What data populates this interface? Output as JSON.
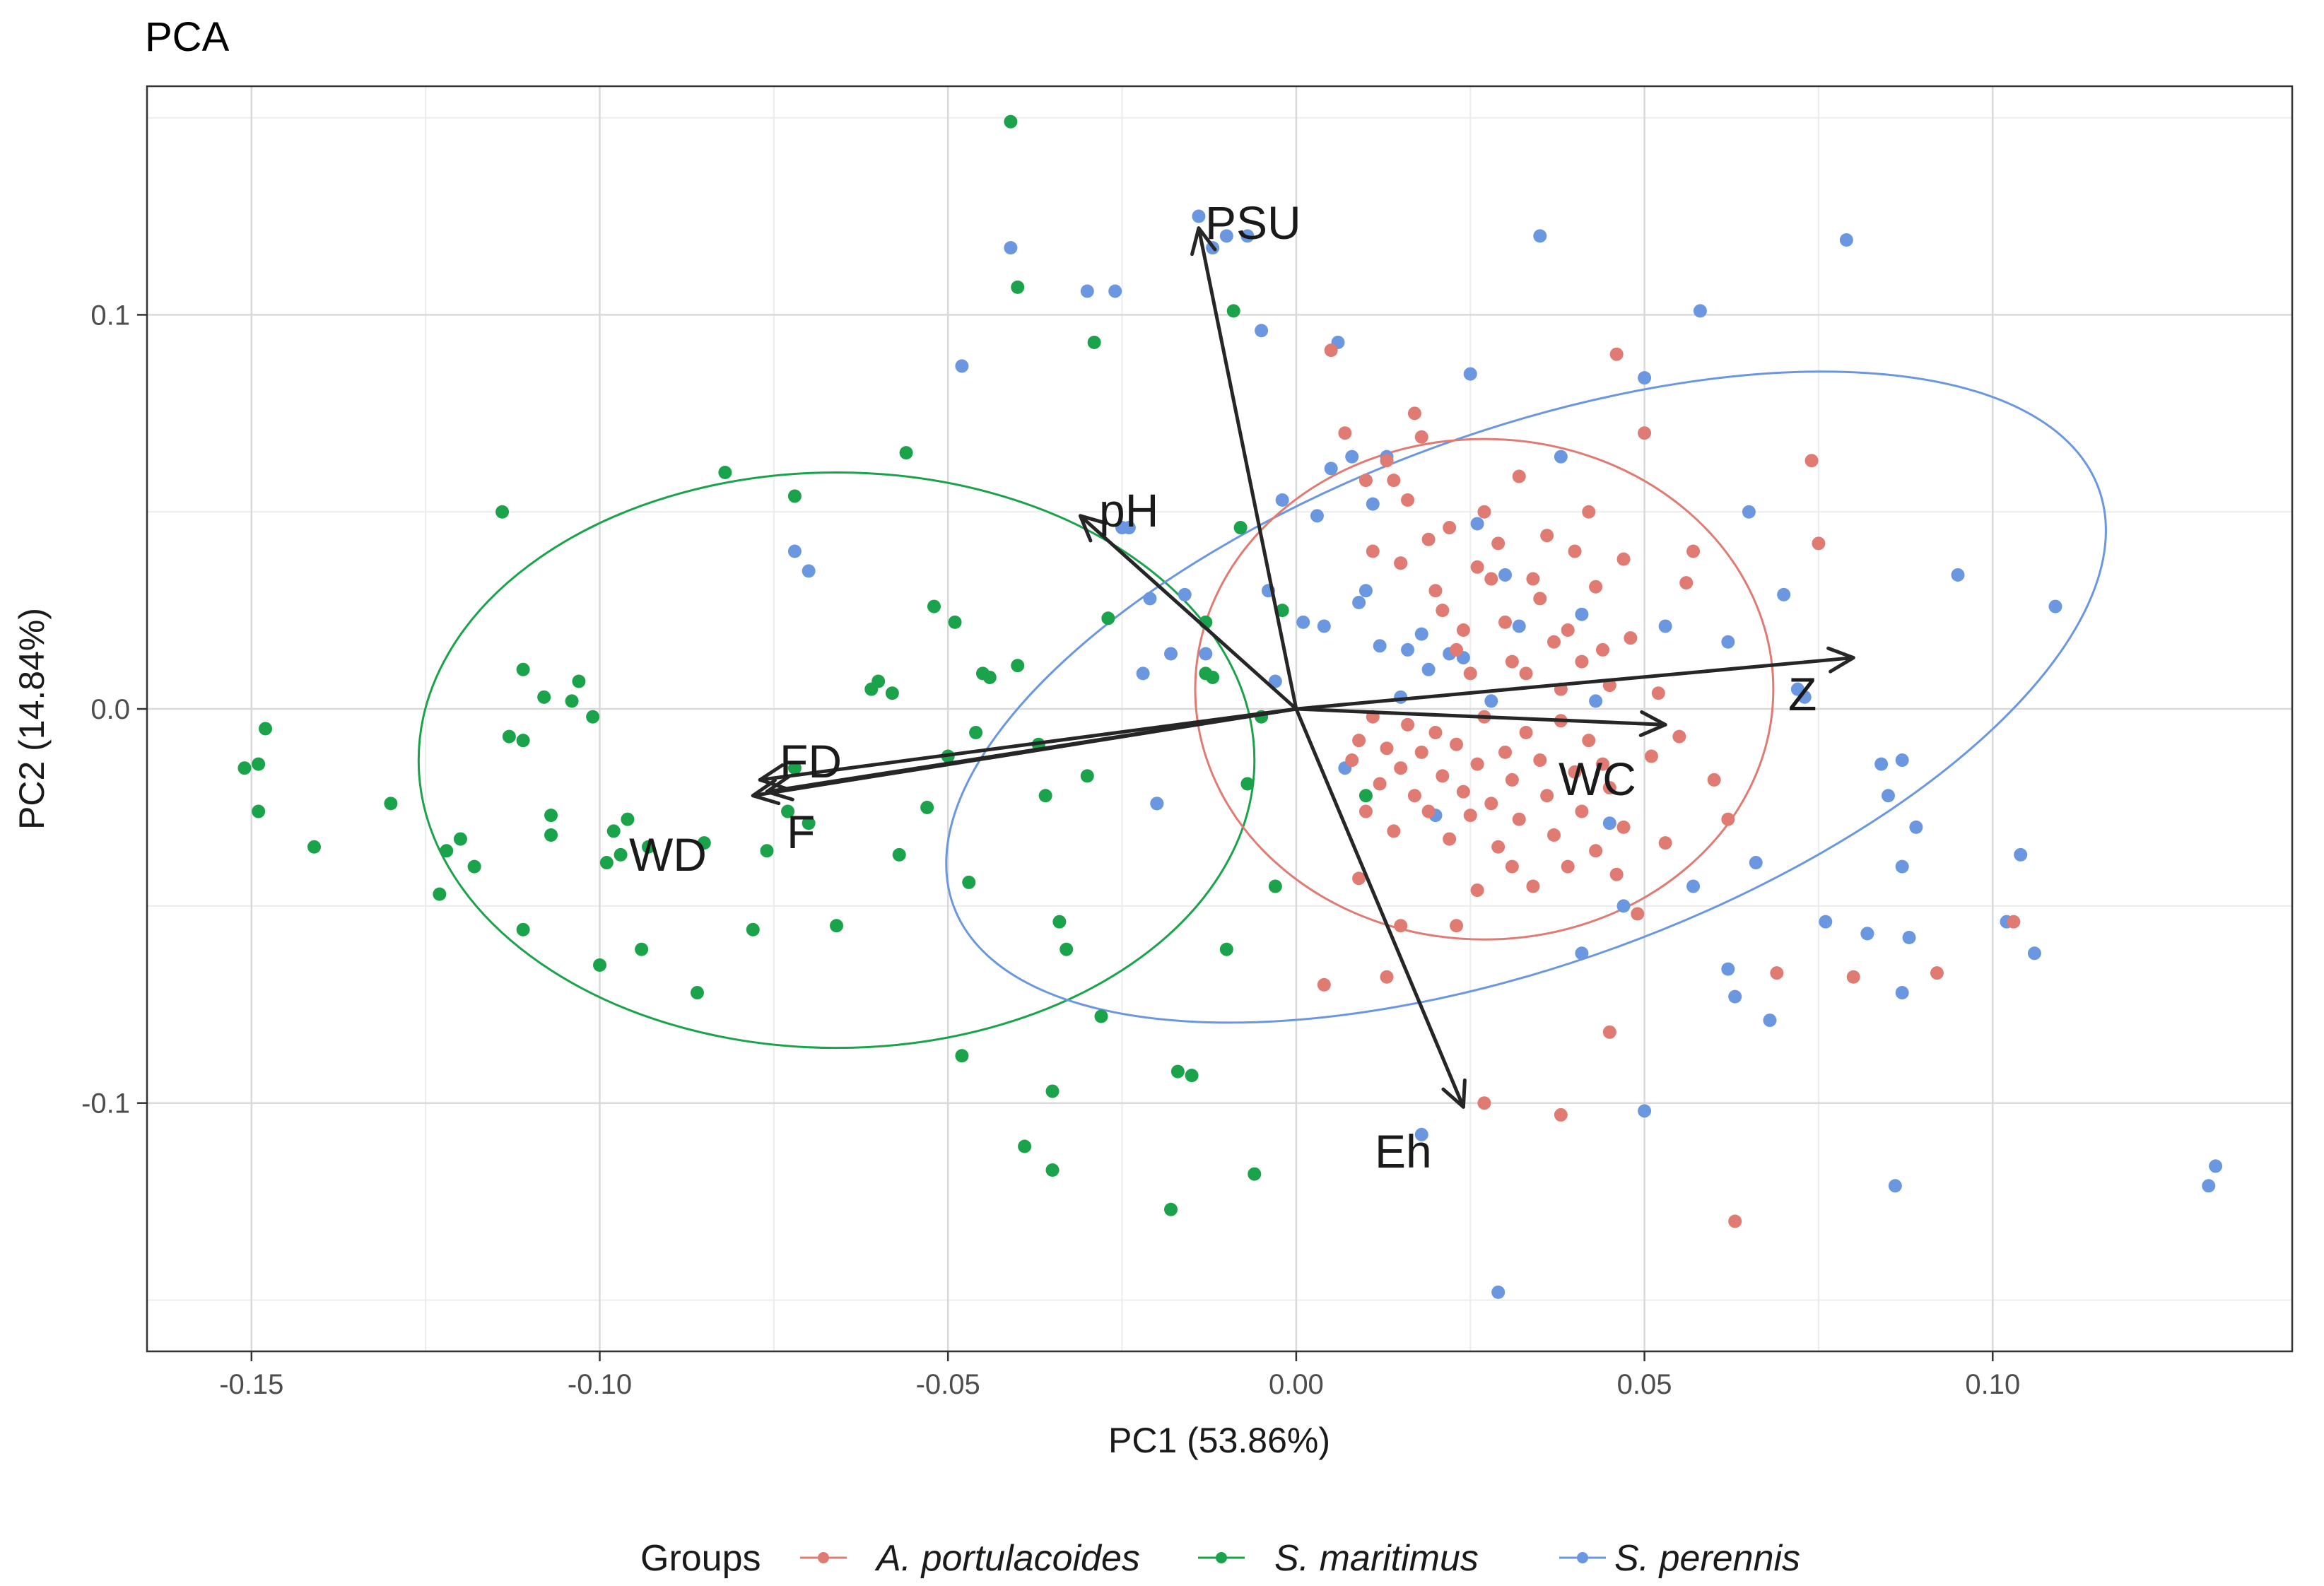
{
  "chart_data": {
    "type": "scatter",
    "title": "PCA",
    "xlabel": "PC1 (53.86%)",
    "ylabel": "PC2 (14.84%)",
    "xlim": [
      -0.165,
      0.143
    ],
    "ylim": [
      -0.163,
      0.158
    ],
    "xticks": [
      -0.15,
      -0.1,
      -0.05,
      0.0,
      0.05,
      0.1
    ],
    "xtick_labels": [
      "-0.15",
      "-0.10",
      "-0.05",
      "0.00",
      "0.05",
      "0.10"
    ],
    "yticks": [
      -0.1,
      0.0,
      0.1
    ],
    "ytick_labels": [
      "-0.1",
      "0.0",
      "0.1"
    ],
    "grid": true,
    "legend": {
      "title": "Groups",
      "position": "bottom",
      "entries": [
        {
          "name": "A. portulacoides",
          "color": "#e07b73"
        },
        {
          "name": "S. maritimus",
          "color": "#1aa34a"
        },
        {
          "name": "S. perennis",
          "color": "#6a97e0"
        }
      ]
    },
    "loadings": [
      {
        "name": "PSU",
        "x": -0.014,
        "y": 0.122
      },
      {
        "name": "pH",
        "x": -0.031,
        "y": 0.049
      },
      {
        "name": "Z",
        "x": 0.08,
        "y": 0.013
      },
      {
        "name": "WC",
        "x": 0.053,
        "y": -0.004
      },
      {
        "name": "Eh",
        "x": 0.024,
        "y": -0.101
      },
      {
        "name": "FD",
        "x": -0.077,
        "y": -0.018
      },
      {
        "name": "WD",
        "x": -0.078,
        "y": -0.022
      },
      {
        "name": "F",
        "x": -0.076,
        "y": -0.021
      }
    ],
    "ellipses": [
      {
        "group": "S. maritimus",
        "cx": -0.066,
        "cy": -0.013,
        "rx": 0.06,
        "ry": 0.073,
        "angle": 0
      },
      {
        "group": "S. perennis",
        "cx": 0.033,
        "cy": 0.003,
        "rx": 0.0875,
        "ry": 0.0675,
        "angle": -20
      },
      {
        "group": "A. portulacoides",
        "cx": 0.027,
        "cy": 0.005,
        "rx": 0.0415,
        "ry": 0.0635,
        "angle": 0
      }
    ],
    "series": [
      {
        "name": "S. maritimus",
        "color": "#1aa34a",
        "points": [
          [
            -0.151,
            -0.015
          ],
          [
            -0.149,
            -0.014
          ],
          [
            -0.148,
            -0.005
          ],
          [
            -0.149,
            -0.026
          ],
          [
            -0.141,
            -0.035
          ],
          [
            -0.13,
            -0.024
          ],
          [
            -0.123,
            -0.047
          ],
          [
            -0.122,
            -0.036
          ],
          [
            -0.12,
            -0.033
          ],
          [
            -0.118,
            -0.04
          ],
          [
            -0.114,
            0.05
          ],
          [
            -0.113,
            -0.007
          ],
          [
            -0.111,
            -0.008
          ],
          [
            -0.111,
            -0.056
          ],
          [
            -0.111,
            0.01
          ],
          [
            -0.108,
            0.003
          ],
          [
            -0.107,
            -0.027
          ],
          [
            -0.107,
            -0.032
          ],
          [
            -0.104,
            0.002
          ],
          [
            -0.103,
            0.007
          ],
          [
            -0.101,
            -0.002
          ],
          [
            -0.1,
            -0.065
          ],
          [
            -0.099,
            -0.039
          ],
          [
            -0.098,
            -0.031
          ],
          [
            -0.097,
            -0.037
          ],
          [
            -0.096,
            -0.028
          ],
          [
            -0.094,
            -0.061
          ],
          [
            -0.093,
            -0.035
          ],
          [
            -0.086,
            -0.072
          ],
          [
            -0.085,
            -0.034
          ],
          [
            -0.082,
            0.06
          ],
          [
            -0.078,
            -0.056
          ],
          [
            -0.076,
            -0.036
          ],
          [
            -0.073,
            -0.026
          ],
          [
            -0.072,
            -0.015
          ],
          [
            -0.072,
            0.054
          ],
          [
            -0.07,
            -0.029
          ],
          [
            -0.066,
            -0.055
          ],
          [
            -0.061,
            0.005
          ],
          [
            -0.06,
            0.007
          ],
          [
            -0.058,
            0.004
          ],
          [
            -0.057,
            -0.037
          ],
          [
            -0.056,
            0.065
          ],
          [
            -0.053,
            -0.025
          ],
          [
            -0.052,
            0.026
          ],
          [
            -0.05,
            -0.012
          ],
          [
            -0.049,
            0.022
          ],
          [
            -0.048,
            -0.088
          ],
          [
            -0.047,
            -0.044
          ],
          [
            -0.046,
            -0.006
          ],
          [
            -0.045,
            0.009
          ],
          [
            -0.044,
            0.008
          ],
          [
            -0.041,
            0.149
          ],
          [
            -0.04,
            0.107
          ],
          [
            -0.04,
            0.011
          ],
          [
            -0.037,
            -0.009
          ],
          [
            -0.036,
            -0.022
          ],
          [
            -0.035,
            -0.097
          ],
          [
            -0.034,
            -0.054
          ],
          [
            -0.033,
            -0.061
          ],
          [
            -0.03,
            -0.017
          ],
          [
            -0.029,
            0.093
          ],
          [
            -0.028,
            -0.078
          ],
          [
            -0.027,
            0.023
          ],
          [
            -0.02,
            -0.024
          ],
          [
            -0.018,
            -0.127
          ],
          [
            -0.017,
            -0.092
          ],
          [
            -0.015,
            -0.093
          ],
          [
            -0.013,
            0.022
          ],
          [
            -0.012,
            0.008
          ],
          [
            -0.01,
            -0.061
          ],
          [
            -0.009,
            0.101
          ],
          [
            -0.008,
            0.046
          ],
          [
            -0.006,
            -0.118
          ],
          [
            -0.005,
            -0.002
          ],
          [
            -0.003,
            -0.045
          ],
          [
            -0.002,
            0.025
          ],
          [
            0.01,
            -0.022
          ],
          [
            -0.039,
            -0.111
          ],
          [
            -0.035,
            -0.117
          ],
          [
            -0.013,
            0.009
          ],
          [
            -0.007,
            -0.019
          ]
        ]
      },
      {
        "name": "S. perennis",
        "color": "#6a97e0",
        "points": [
          [
            -0.072,
            0.04
          ],
          [
            -0.07,
            0.035
          ],
          [
            -0.041,
            0.117
          ],
          [
            -0.048,
            0.087
          ],
          [
            -0.03,
            0.106
          ],
          [
            -0.026,
            0.106
          ],
          [
            -0.025,
            0.046
          ],
          [
            -0.024,
            0.046
          ],
          [
            -0.022,
            0.009
          ],
          [
            -0.021,
            0.028
          ],
          [
            -0.02,
            -0.024
          ],
          [
            -0.018,
            0.014
          ],
          [
            -0.016,
            0.029
          ],
          [
            -0.014,
            0.125
          ],
          [
            -0.013,
            0.014
          ],
          [
            -0.012,
            0.117
          ],
          [
            -0.01,
            0.12
          ],
          [
            -0.007,
            0.12
          ],
          [
            -0.005,
            0.096
          ],
          [
            -0.004,
            0.03
          ],
          [
            -0.003,
            0.007
          ],
          [
            -0.002,
            0.053
          ],
          [
            0.001,
            0.022
          ],
          [
            0.003,
            0.049
          ],
          [
            0.004,
            0.021
          ],
          [
            0.005,
            0.061
          ],
          [
            0.006,
            0.093
          ],
          [
            0.007,
            -0.015
          ],
          [
            0.008,
            0.064
          ],
          [
            0.01,
            0.03
          ],
          [
            0.011,
            0.052
          ],
          [
            0.013,
            0.064
          ],
          [
            0.015,
            0.037
          ],
          [
            0.016,
            0.015
          ],
          [
            0.018,
            0.019
          ],
          [
            0.019,
            0.01
          ],
          [
            0.02,
            -0.027
          ],
          [
            0.022,
            0.014
          ],
          [
            0.024,
            0.013
          ],
          [
            0.025,
            0.085
          ],
          [
            0.026,
            0.047
          ],
          [
            0.028,
            0.002
          ],
          [
            0.03,
            0.034
          ],
          [
            0.032,
            0.021
          ],
          [
            0.035,
            0.12
          ],
          [
            0.038,
            0.064
          ],
          [
            0.041,
            0.024
          ],
          [
            0.043,
            0.002
          ],
          [
            0.045,
            -0.029
          ],
          [
            0.047,
            -0.05
          ],
          [
            0.05,
            0.084
          ],
          [
            0.05,
            -0.102
          ],
          [
            0.053,
            0.021
          ],
          [
            0.057,
            -0.045
          ],
          [
            0.058,
            0.101
          ],
          [
            0.062,
            0.017
          ],
          [
            0.062,
            -0.066
          ],
          [
            0.065,
            0.05
          ],
          [
            0.066,
            -0.039
          ],
          [
            0.068,
            -0.079
          ],
          [
            0.07,
            0.029
          ],
          [
            0.072,
            0.005
          ],
          [
            0.076,
            -0.054
          ],
          [
            0.079,
            0.119
          ],
          [
            0.082,
            -0.057
          ],
          [
            0.084,
            -0.014
          ],
          [
            0.085,
            -0.022
          ],
          [
            0.086,
            -0.121
          ],
          [
            0.087,
            -0.013
          ],
          [
            0.087,
            -0.04
          ],
          [
            0.087,
            -0.072
          ],
          [
            0.088,
            -0.058
          ],
          [
            0.089,
            -0.03
          ],
          [
            0.095,
            0.034
          ],
          [
            0.102,
            -0.054
          ],
          [
            0.104,
            -0.037
          ],
          [
            0.106,
            -0.062
          ],
          [
            0.109,
            0.026
          ],
          [
            0.131,
            -0.121
          ],
          [
            0.132,
            -0.116
          ],
          [
            0.082,
            -0.057
          ],
          [
            0.073,
            0.003
          ],
          [
            0.063,
            -0.073
          ],
          [
            0.041,
            -0.062
          ],
          [
            0.029,
            -0.148
          ],
          [
            0.018,
            -0.108
          ],
          [
            0.015,
            0.003
          ],
          [
            0.012,
            0.016
          ],
          [
            0.009,
            0.027
          ]
        ]
      },
      {
        "name": "A. portulacoides",
        "color": "#e07b73",
        "points": [
          [
            0.005,
            0.091
          ],
          [
            0.007,
            0.07
          ],
          [
            0.01,
            0.058
          ],
          [
            0.011,
            0.04
          ],
          [
            0.013,
            0.063
          ],
          [
            0.014,
            0.058
          ],
          [
            0.015,
            0.037
          ],
          [
            0.016,
            0.053
          ],
          [
            0.017,
            0.075
          ],
          [
            0.018,
            0.069
          ],
          [
            0.019,
            0.043
          ],
          [
            0.02,
            0.03
          ],
          [
            0.021,
            0.025
          ],
          [
            0.022,
            0.046
          ],
          [
            0.023,
            0.015
          ],
          [
            0.024,
            0.02
          ],
          [
            0.025,
            0.009
          ],
          [
            0.026,
            0.036
          ],
          [
            0.027,
            0.05
          ],
          [
            0.028,
            0.033
          ],
          [
            0.029,
            0.042
          ],
          [
            0.03,
            0.022
          ],
          [
            0.031,
            0.012
          ],
          [
            0.032,
            0.059
          ],
          [
            0.033,
            0.009
          ],
          [
            0.034,
            0.033
          ],
          [
            0.035,
            0.028
          ],
          [
            0.036,
            0.044
          ],
          [
            0.037,
            0.017
          ],
          [
            0.038,
            0.005
          ],
          [
            0.039,
            0.02
          ],
          [
            0.04,
            0.04
          ],
          [
            0.041,
            0.012
          ],
          [
            0.042,
            0.05
          ],
          [
            0.043,
            0.031
          ],
          [
            0.044,
            0.015
          ],
          [
            0.045,
            0.006
          ],
          [
            0.046,
            0.09
          ],
          [
            0.047,
            0.038
          ],
          [
            0.048,
            0.018
          ],
          [
            0.05,
            0.07
          ],
          [
            0.052,
            0.004
          ],
          [
            0.055,
            -0.007
          ],
          [
            0.056,
            0.032
          ],
          [
            0.057,
            0.04
          ],
          [
            0.06,
            -0.018
          ],
          [
            0.062,
            -0.028
          ],
          [
            0.063,
            -0.13
          ],
          [
            0.069,
            -0.067
          ],
          [
            0.074,
            0.063
          ],
          [
            0.075,
            0.042
          ],
          [
            0.08,
            -0.068
          ],
          [
            0.092,
            -0.067
          ],
          [
            0.103,
            -0.054
          ],
          [
            0.008,
            -0.013
          ],
          [
            0.009,
            -0.008
          ],
          [
            0.01,
            -0.026
          ],
          [
            0.011,
            -0.002
          ],
          [
            0.012,
            -0.019
          ],
          [
            0.013,
            -0.01
          ],
          [
            0.014,
            -0.031
          ],
          [
            0.015,
            -0.015
          ],
          [
            0.016,
            -0.004
          ],
          [
            0.017,
            -0.022
          ],
          [
            0.018,
            -0.011
          ],
          [
            0.019,
            -0.026
          ],
          [
            0.02,
            -0.006
          ],
          [
            0.021,
            -0.017
          ],
          [
            0.022,
            -0.033
          ],
          [
            0.023,
            -0.009
          ],
          [
            0.024,
            -0.021
          ],
          [
            0.025,
            -0.027
          ],
          [
            0.026,
            -0.014
          ],
          [
            0.027,
            -0.002
          ],
          [
            0.028,
            -0.024
          ],
          [
            0.029,
            -0.035
          ],
          [
            0.03,
            -0.011
          ],
          [
            0.031,
            -0.018
          ],
          [
            0.032,
            -0.028
          ],
          [
            0.033,
            -0.006
          ],
          [
            0.034,
            -0.045
          ],
          [
            0.035,
            -0.013
          ],
          [
            0.036,
            -0.022
          ],
          [
            0.037,
            -0.032
          ],
          [
            0.038,
            -0.003
          ],
          [
            0.039,
            -0.04
          ],
          [
            0.04,
            -0.016
          ],
          [
            0.041,
            -0.026
          ],
          [
            0.042,
            -0.008
          ],
          [
            0.043,
            -0.036
          ],
          [
            0.044,
            -0.014
          ],
          [
            0.045,
            -0.02
          ],
          [
            0.046,
            -0.042
          ],
          [
            0.047,
            -0.03
          ],
          [
            0.049,
            -0.052
          ],
          [
            0.051,
            -0.012
          ],
          [
            0.053,
            -0.034
          ],
          [
            0.027,
            -0.1
          ],
          [
            0.038,
            -0.103
          ],
          [
            0.045,
            -0.082
          ],
          [
            0.026,
            -0.046
          ],
          [
            0.015,
            -0.055
          ],
          [
            0.013,
            -0.068
          ],
          [
            0.004,
            -0.07
          ],
          [
            0.009,
            -0.043
          ],
          [
            0.023,
            -0.055
          ],
          [
            0.031,
            -0.04
          ]
        ]
      }
    ]
  }
}
